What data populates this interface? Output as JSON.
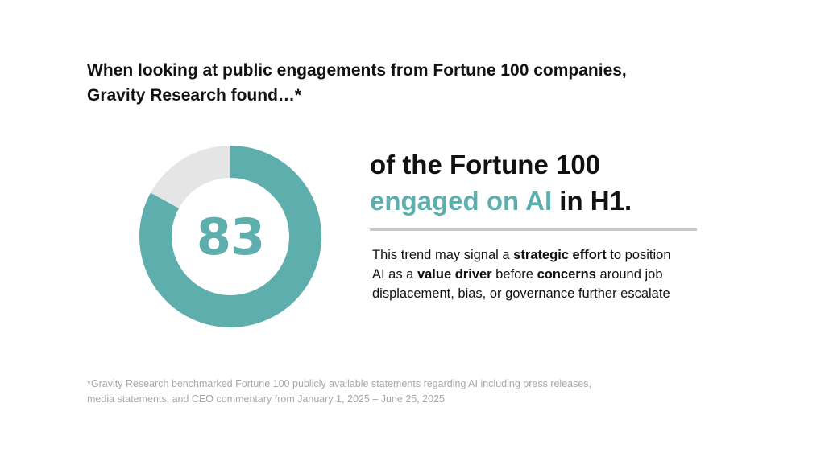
{
  "headline": {
    "line1": "When looking at public engagements from Fortune 100 companies,",
    "line2": "Gravity Research found…*"
  },
  "chart_data": {
    "type": "pie",
    "style": "donut",
    "center_label": "83",
    "total": 100,
    "slices": [
      {
        "value": 83,
        "color": "#5eaead"
      },
      {
        "value": 17,
        "color": "#e6e5e5"
      }
    ]
  },
  "stat": {
    "line1": "of the Fortune 100",
    "highlight": "engaged on AI",
    "line2_rest": " in H1."
  },
  "body": {
    "l1_a": "This trend may signal a ",
    "l1_b": "strategic effort",
    "l1_c": " to position",
    "l2_a": "AI as a ",
    "l2_b": "value driver",
    "l2_c": " before ",
    "l2_d": "concerns",
    "l2_e": " around job",
    "l3": "displacement, bias, or governance further escalate"
  },
  "footnote": {
    "line1": "*Gravity Research benchmarked Fortune 100 publicly available statements regarding AI including press releases,",
    "line2": "media statements, and CEO commentary from January 1, 2025 – June 25, 2025"
  },
  "colors": {
    "accent": "#5eaead",
    "remainder": "#e6e5e5",
    "divider": "#c8c8c8",
    "footnote": "#a8a8a8"
  }
}
